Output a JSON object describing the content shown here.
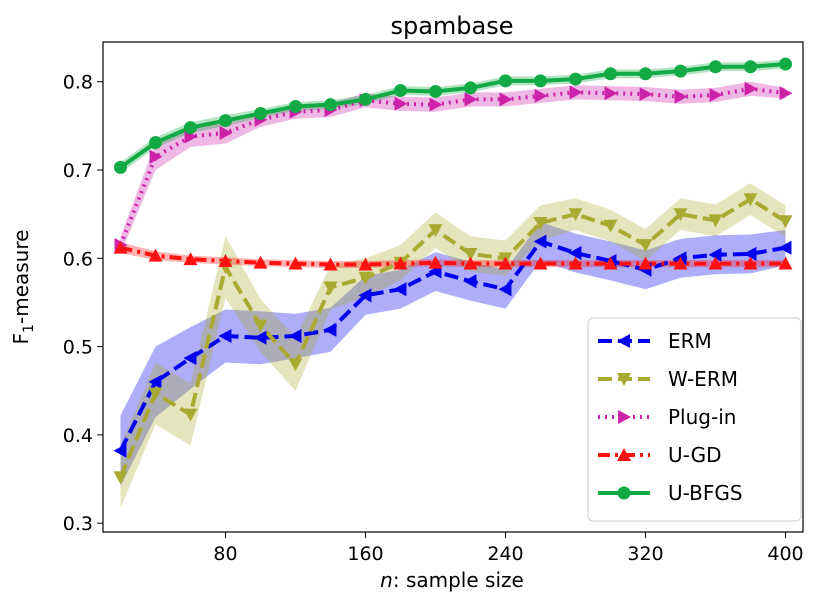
{
  "chart_data": {
    "type": "line",
    "title": "spambase",
    "xlabel_italic": "n",
    "xlabel_rest": ": sample size",
    "ylabel_main": "F",
    "ylabel_sub": "1",
    "ylabel_rest": "-measure",
    "xlim": [
      10,
      410
    ],
    "ylim": [
      0.29,
      0.845
    ],
    "xticks": [
      80,
      160,
      240,
      320,
      400
    ],
    "yticks": [
      0.3,
      0.4,
      0.5,
      0.6,
      0.7,
      0.8
    ],
    "x": [
      20,
      40,
      60,
      80,
      100,
      120,
      140,
      160,
      180,
      200,
      220,
      240,
      260,
      280,
      300,
      320,
      340,
      360,
      380,
      400
    ],
    "legend_position": "lower-right",
    "series": [
      {
        "name": "ERM",
        "color": "#0000ee",
        "marker": "triangle-left",
        "linestyle": "dashed",
        "values": [
          0.382,
          0.46,
          0.487,
          0.512,
          0.51,
          0.512,
          0.519,
          0.558,
          0.565,
          0.585,
          0.574,
          0.565,
          0.619,
          0.606,
          0.597,
          0.587,
          0.6,
          0.604,
          0.605,
          0.612
        ],
        "band": [
          0.04,
          0.04,
          0.035,
          0.03,
          0.03,
          0.025,
          0.025,
          0.022,
          0.022,
          0.022,
          0.022,
          0.022,
          0.022,
          0.022,
          0.022,
          0.022,
          0.022,
          0.022,
          0.022,
          0.02
        ]
      },
      {
        "name": "W-ERM",
        "color": "#aaaa33",
        "marker": "triangle-down",
        "linestyle": "dashed",
        "values": [
          0.352,
          0.447,
          0.423,
          0.59,
          0.524,
          0.48,
          0.567,
          0.578,
          0.595,
          0.632,
          0.605,
          0.6,
          0.64,
          0.65,
          0.637,
          0.615,
          0.65,
          0.643,
          0.667,
          0.642
        ],
        "band": [
          0.035,
          0.035,
          0.035,
          0.035,
          0.03,
          0.03,
          0.025,
          0.022,
          0.02,
          0.02,
          0.02,
          0.02,
          0.02,
          0.018,
          0.018,
          0.018,
          0.018,
          0.018,
          0.018,
          0.018
        ]
      },
      {
        "name": "Plug-in",
        "color": "#cc22aa",
        "marker": "triangle-right",
        "linestyle": "dotted",
        "values": [
          0.615,
          0.715,
          0.738,
          0.742,
          0.757,
          0.766,
          0.768,
          0.779,
          0.775,
          0.774,
          0.78,
          0.78,
          0.784,
          0.788,
          0.787,
          0.786,
          0.783,
          0.785,
          0.792,
          0.787
        ],
        "band": [
          0.01,
          0.015,
          0.012,
          0.012,
          0.008,
          0.008,
          0.008,
          0.008,
          0.008,
          0.008,
          0.008,
          0.008,
          0.008,
          0.008,
          0.008,
          0.008,
          0.008,
          0.008,
          0.008,
          0.006
        ]
      },
      {
        "name": "U-GD",
        "color": "#ff1111",
        "marker": "triangle-up",
        "linestyle": "dashdot",
        "values": [
          0.612,
          0.603,
          0.599,
          0.597,
          0.595,
          0.594,
          0.593,
          0.593,
          0.594,
          0.595,
          0.594,
          0.594,
          0.594,
          0.594,
          0.594,
          0.594,
          0.594,
          0.594,
          0.594,
          0.594
        ],
        "band": [
          0.006,
          0.005,
          0.004,
          0.004,
          0.004,
          0.004,
          0.004,
          0.004,
          0.004,
          0.004,
          0.004,
          0.004,
          0.004,
          0.004,
          0.004,
          0.004,
          0.004,
          0.004,
          0.004,
          0.004
        ]
      },
      {
        "name": "U-BFGS",
        "color": "#11aa44",
        "marker": "circle",
        "linestyle": "solid",
        "values": [
          0.703,
          0.731,
          0.748,
          0.756,
          0.764,
          0.772,
          0.774,
          0.78,
          0.79,
          0.789,
          0.793,
          0.801,
          0.801,
          0.803,
          0.809,
          0.809,
          0.812,
          0.817,
          0.817,
          0.82
        ],
        "band": [
          0.006,
          0.006,
          0.006,
          0.006,
          0.005,
          0.005,
          0.005,
          0.005,
          0.005,
          0.005,
          0.005,
          0.005,
          0.005,
          0.005,
          0.005,
          0.005,
          0.005,
          0.005,
          0.005,
          0.005
        ]
      }
    ]
  }
}
